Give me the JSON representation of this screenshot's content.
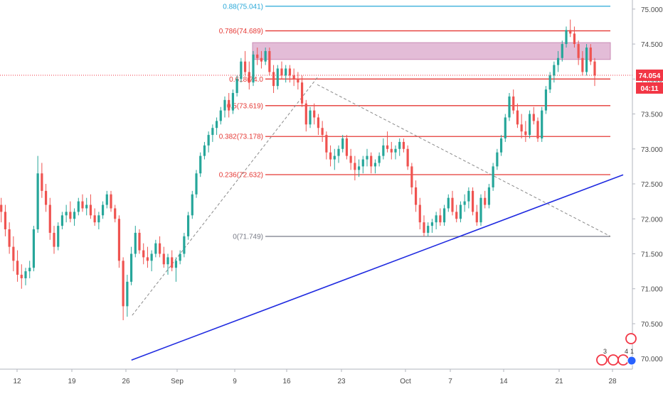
{
  "chart_data": {
    "type": "candlestick",
    "title": "",
    "xlabel": "",
    "ylabel": "",
    "ylim": [
      69.85,
      75.13
    ],
    "colors": {
      "up": "#26a69a",
      "down": "#ef5350",
      "fib_red": "#e53935",
      "fib_top": "#29a8d8",
      "fib_zero": "#787b86",
      "trendline": "#1f2ae0",
      "dashed": "#8a8a8a",
      "zone": "#d9a6c9",
      "price_tag": "#f23645",
      "axis_text": "#4a4a4a",
      "grid": "#e0e3eb"
    },
    "x_tick_labels": [
      "12",
      "19",
      "26",
      "Sep",
      "9",
      "16",
      "23",
      "Oct",
      "7",
      "14",
      "21",
      "28"
    ],
    "y_tick_labels": [
      "75.000",
      "74.500",
      "74.000",
      "73.500",
      "73.000",
      "72.500",
      "72.000",
      "71.500",
      "71.000",
      "70.500",
      "70.000"
    ],
    "y_ticks": [
      75.0,
      74.5,
      74.0,
      73.5,
      73.0,
      72.5,
      72.0,
      71.5,
      71.0,
      70.5,
      70.0
    ],
    "current_price": {
      "label": "74.054",
      "value": 74.054,
      "countdown": "04:11"
    },
    "fib_levels": [
      {
        "ratio": "0.88",
        "value": 75.041,
        "label": "0.88(75.041)",
        "kind": "top"
      },
      {
        "ratio": "0.786",
        "value": 74.689,
        "label": "0.786(74.689)",
        "kind": "red"
      },
      {
        "ratio": "0.618",
        "value": 74.0,
        "label": "0.618(74.0",
        "kind": "red"
      },
      {
        "ratio": "0.5",
        "value": 73.619,
        "label": "0.5(73.619)",
        "kind": "red"
      },
      {
        "ratio": "0.382",
        "value": 73.178,
        "label": "0.382(73.178)",
        "kind": "red"
      },
      {
        "ratio": "0.236",
        "value": 72.632,
        "label": "0.236(72.632)",
        "kind": "red"
      },
      {
        "ratio": "0",
        "value": 71.749,
        "label": "0(71.749)",
        "kind": "zero"
      }
    ],
    "resistance_zone": {
      "low": 74.3,
      "high": 74.5
    },
    "trendline": {
      "from": [
        "Aug 26",
        69.98
      ],
      "to": [
        "Oct 28",
        72.63
      ]
    },
    "dashed_line": {
      "from": [
        "Aug 26",
        70.6
      ],
      "to": [
        "Oct 28",
        71.75
      ]
    },
    "series": [
      {
        "type": "candlestick",
        "x_start": "Aug 8",
        "ohlc": [
          [
            72.3,
            72.4,
            72.05,
            72.2
          ],
          [
            72.2,
            72.3,
            71.95,
            72.1
          ],
          [
            72.1,
            72.2,
            71.75,
            71.85
          ],
          [
            71.85,
            71.95,
            71.5,
            71.6
          ],
          [
            71.6,
            71.75,
            71.25,
            71.4
          ],
          [
            71.4,
            71.55,
            71.1,
            71.2
          ],
          [
            71.2,
            71.35,
            71.0,
            71.15
          ],
          [
            71.15,
            71.3,
            71.05,
            71.25
          ],
          [
            71.25,
            71.4,
            71.15,
            71.3
          ],
          [
            71.3,
            71.9,
            71.25,
            71.85
          ],
          [
            71.85,
            72.9,
            71.8,
            72.65
          ],
          [
            72.65,
            72.8,
            72.3,
            72.4
          ],
          [
            72.4,
            72.5,
            72.1,
            72.2
          ],
          [
            72.2,
            72.3,
            71.7,
            71.8
          ],
          [
            71.8,
            71.9,
            71.5,
            71.6
          ],
          [
            71.6,
            71.95,
            71.55,
            71.9
          ],
          [
            71.9,
            72.1,
            71.85,
            72.05
          ],
          [
            72.05,
            72.2,
            71.95,
            72.1
          ],
          [
            72.1,
            72.25,
            71.95,
            72.0
          ],
          [
            72.0,
            72.15,
            71.9,
            72.1
          ],
          [
            72.1,
            72.3,
            72.05,
            72.25
          ],
          [
            72.25,
            72.35,
            72.1,
            72.15
          ],
          [
            72.15,
            72.3,
            72.05,
            72.2
          ],
          [
            72.2,
            72.35,
            72.0,
            72.05
          ],
          [
            72.05,
            72.15,
            71.9,
            71.95
          ],
          [
            71.95,
            72.1,
            71.85,
            72.05
          ],
          [
            72.05,
            72.25,
            72.0,
            72.2
          ],
          [
            72.2,
            72.4,
            72.15,
            72.35
          ],
          [
            72.35,
            72.4,
            72.1,
            72.15
          ],
          [
            72.15,
            72.2,
            71.95,
            72.0
          ],
          [
            72.0,
            72.05,
            71.3,
            71.4
          ],
          [
            71.4,
            71.45,
            70.55,
            70.75
          ],
          [
            70.75,
            71.2,
            70.6,
            71.1
          ],
          [
            71.1,
            71.6,
            71.05,
            71.5
          ],
          [
            71.5,
            71.9,
            71.45,
            71.8
          ],
          [
            71.8,
            71.85,
            71.5,
            71.55
          ],
          [
            71.55,
            71.65,
            71.35,
            71.45
          ],
          [
            71.45,
            71.6,
            71.3,
            71.4
          ],
          [
            71.4,
            71.55,
            71.25,
            71.5
          ],
          [
            71.5,
            71.7,
            71.45,
            71.65
          ],
          [
            71.65,
            71.75,
            71.45,
            71.5
          ],
          [
            71.5,
            71.6,
            71.3,
            71.35
          ],
          [
            71.35,
            71.5,
            71.2,
            71.45
          ],
          [
            71.45,
            71.55,
            71.25,
            71.3
          ],
          [
            71.3,
            71.45,
            71.1,
            71.4
          ],
          [
            71.4,
            71.55,
            71.35,
            71.5
          ],
          [
            71.5,
            71.8,
            71.45,
            71.75
          ],
          [
            71.75,
            72.1,
            71.7,
            72.05
          ],
          [
            72.05,
            72.4,
            72.0,
            72.35
          ],
          [
            72.35,
            72.7,
            72.3,
            72.65
          ],
          [
            72.65,
            72.95,
            72.6,
            72.9
          ],
          [
            72.9,
            73.1,
            72.85,
            73.05
          ],
          [
            73.05,
            73.25,
            72.95,
            73.2
          ],
          [
            73.2,
            73.35,
            73.1,
            73.3
          ],
          [
            73.3,
            73.45,
            73.2,
            73.4
          ],
          [
            73.4,
            73.6,
            73.35,
            73.55
          ],
          [
            73.55,
            73.75,
            73.45,
            73.7
          ],
          [
            73.7,
            73.8,
            73.45,
            73.55
          ],
          [
            73.55,
            73.85,
            73.5,
            73.8
          ],
          [
            73.8,
            74.05,
            73.75,
            74.0
          ],
          [
            74.0,
            74.3,
            73.95,
            74.25
          ],
          [
            74.25,
            74.4,
            74.05,
            74.1
          ],
          [
            74.1,
            74.25,
            73.85,
            73.95
          ],
          [
            73.95,
            74.4,
            73.9,
            74.35
          ],
          [
            74.35,
            74.45,
            74.2,
            74.3
          ],
          [
            74.3,
            74.4,
            74.15,
            74.25
          ],
          [
            74.25,
            74.45,
            74.2,
            74.4
          ],
          [
            74.4,
            74.45,
            74.05,
            74.1
          ],
          [
            74.1,
            74.2,
            73.8,
            73.9
          ],
          [
            73.9,
            74.2,
            73.85,
            74.15
          ],
          [
            74.15,
            74.25,
            74.0,
            74.05
          ],
          [
            74.05,
            74.2,
            73.95,
            74.15
          ],
          [
            74.15,
            74.2,
            73.95,
            74.05
          ],
          [
            74.05,
            74.15,
            73.9,
            74.0
          ],
          [
            74.0,
            74.1,
            73.85,
            73.95
          ],
          [
            73.95,
            74.05,
            73.6,
            73.65
          ],
          [
            73.65,
            73.7,
            73.25,
            73.35
          ],
          [
            73.35,
            73.6,
            73.3,
            73.55
          ],
          [
            73.55,
            73.65,
            73.35,
            73.45
          ],
          [
            73.45,
            73.5,
            73.2,
            73.3
          ],
          [
            73.3,
            73.4,
            73.1,
            73.2
          ],
          [
            73.2,
            73.25,
            72.85,
            72.95
          ],
          [
            72.95,
            73.05,
            72.75,
            72.85
          ],
          [
            72.85,
            73.0,
            72.7,
            72.9
          ],
          [
            72.9,
            73.05,
            72.8,
            73.0
          ],
          [
            73.0,
            73.2,
            72.95,
            73.15
          ],
          [
            73.15,
            73.2,
            72.85,
            72.9
          ],
          [
            72.9,
            73.0,
            72.7,
            72.8
          ],
          [
            72.8,
            72.9,
            72.55,
            72.7
          ],
          [
            72.7,
            72.85,
            72.6,
            72.75
          ],
          [
            72.75,
            72.9,
            72.65,
            72.85
          ],
          [
            72.85,
            73.0,
            72.75,
            72.9
          ],
          [
            72.9,
            72.95,
            72.65,
            72.75
          ],
          [
            72.75,
            72.85,
            72.65,
            72.8
          ],
          [
            72.8,
            72.95,
            72.75,
            72.9
          ],
          [
            72.9,
            73.15,
            72.85,
            73.05
          ],
          [
            73.05,
            73.25,
            72.95,
            73.0
          ],
          [
            73.0,
            73.1,
            72.85,
            72.95
          ],
          [
            72.95,
            73.05,
            72.85,
            73.0
          ],
          [
            73.0,
            73.15,
            72.9,
            73.1
          ],
          [
            73.1,
            73.15,
            72.95,
            73.0
          ],
          [
            73.0,
            73.05,
            72.7,
            72.75
          ],
          [
            72.75,
            72.8,
            72.35,
            72.45
          ],
          [
            72.45,
            72.55,
            72.1,
            72.2
          ],
          [
            72.2,
            72.3,
            71.85,
            71.95
          ],
          [
            71.95,
            72.05,
            71.75,
            71.8
          ],
          [
            71.8,
            71.95,
            71.75,
            71.9
          ],
          [
            71.9,
            72.0,
            71.8,
            71.95
          ],
          [
            71.95,
            72.1,
            71.85,
            72.05
          ],
          [
            72.05,
            72.15,
            71.9,
            71.95
          ],
          [
            71.95,
            72.2,
            71.9,
            72.15
          ],
          [
            72.15,
            72.35,
            72.1,
            72.3
          ],
          [
            72.3,
            72.4,
            72.05,
            72.1
          ],
          [
            72.1,
            72.2,
            71.95,
            72.0
          ],
          [
            72.0,
            72.25,
            71.95,
            72.2
          ],
          [
            72.2,
            72.35,
            72.1,
            72.25
          ],
          [
            72.25,
            72.45,
            72.15,
            72.4
          ],
          [
            72.4,
            72.45,
            72.05,
            72.1
          ],
          [
            72.1,
            72.2,
            71.9,
            71.95
          ],
          [
            71.95,
            72.35,
            71.9,
            72.3
          ],
          [
            72.3,
            72.4,
            72.15,
            72.2
          ],
          [
            72.2,
            72.5,
            72.15,
            72.45
          ],
          [
            72.45,
            72.8,
            72.4,
            72.75
          ],
          [
            72.75,
            73.0,
            72.7,
            72.95
          ],
          [
            72.95,
            73.2,
            72.9,
            73.15
          ],
          [
            73.15,
            73.5,
            73.1,
            73.45
          ],
          [
            73.45,
            73.8,
            73.4,
            73.75
          ],
          [
            73.75,
            73.85,
            73.5,
            73.55
          ],
          [
            73.55,
            73.65,
            73.3,
            73.35
          ],
          [
            73.35,
            73.5,
            73.15,
            73.25
          ],
          [
            73.25,
            73.4,
            73.1,
            73.2
          ],
          [
            73.2,
            73.55,
            73.15,
            73.5
          ],
          [
            73.5,
            73.6,
            73.35,
            73.4
          ],
          [
            73.4,
            73.45,
            73.1,
            73.15
          ],
          [
            73.15,
            73.6,
            73.1,
            73.55
          ],
          [
            73.55,
            73.9,
            73.5,
            73.85
          ],
          [
            73.85,
            74.1,
            73.8,
            74.05
          ],
          [
            74.05,
            74.25,
            73.95,
            74.2
          ],
          [
            74.2,
            74.4,
            74.1,
            74.3
          ],
          [
            74.3,
            74.55,
            74.25,
            74.5
          ],
          [
            74.5,
            74.75,
            74.45,
            74.7
          ],
          [
            74.7,
            74.85,
            74.6,
            74.65
          ],
          [
            74.65,
            74.75,
            74.45,
            74.5
          ],
          [
            74.5,
            74.55,
            74.2,
            74.3
          ],
          [
            74.3,
            74.4,
            74.05,
            74.1
          ],
          [
            74.1,
            74.5,
            74.05,
            74.45
          ],
          [
            74.45,
            74.5,
            74.2,
            74.25
          ],
          [
            74.25,
            74.3,
            73.9,
            74.05
          ]
        ]
      }
    ],
    "corner_markers": [
      "3",
      "4",
      "1"
    ]
  }
}
